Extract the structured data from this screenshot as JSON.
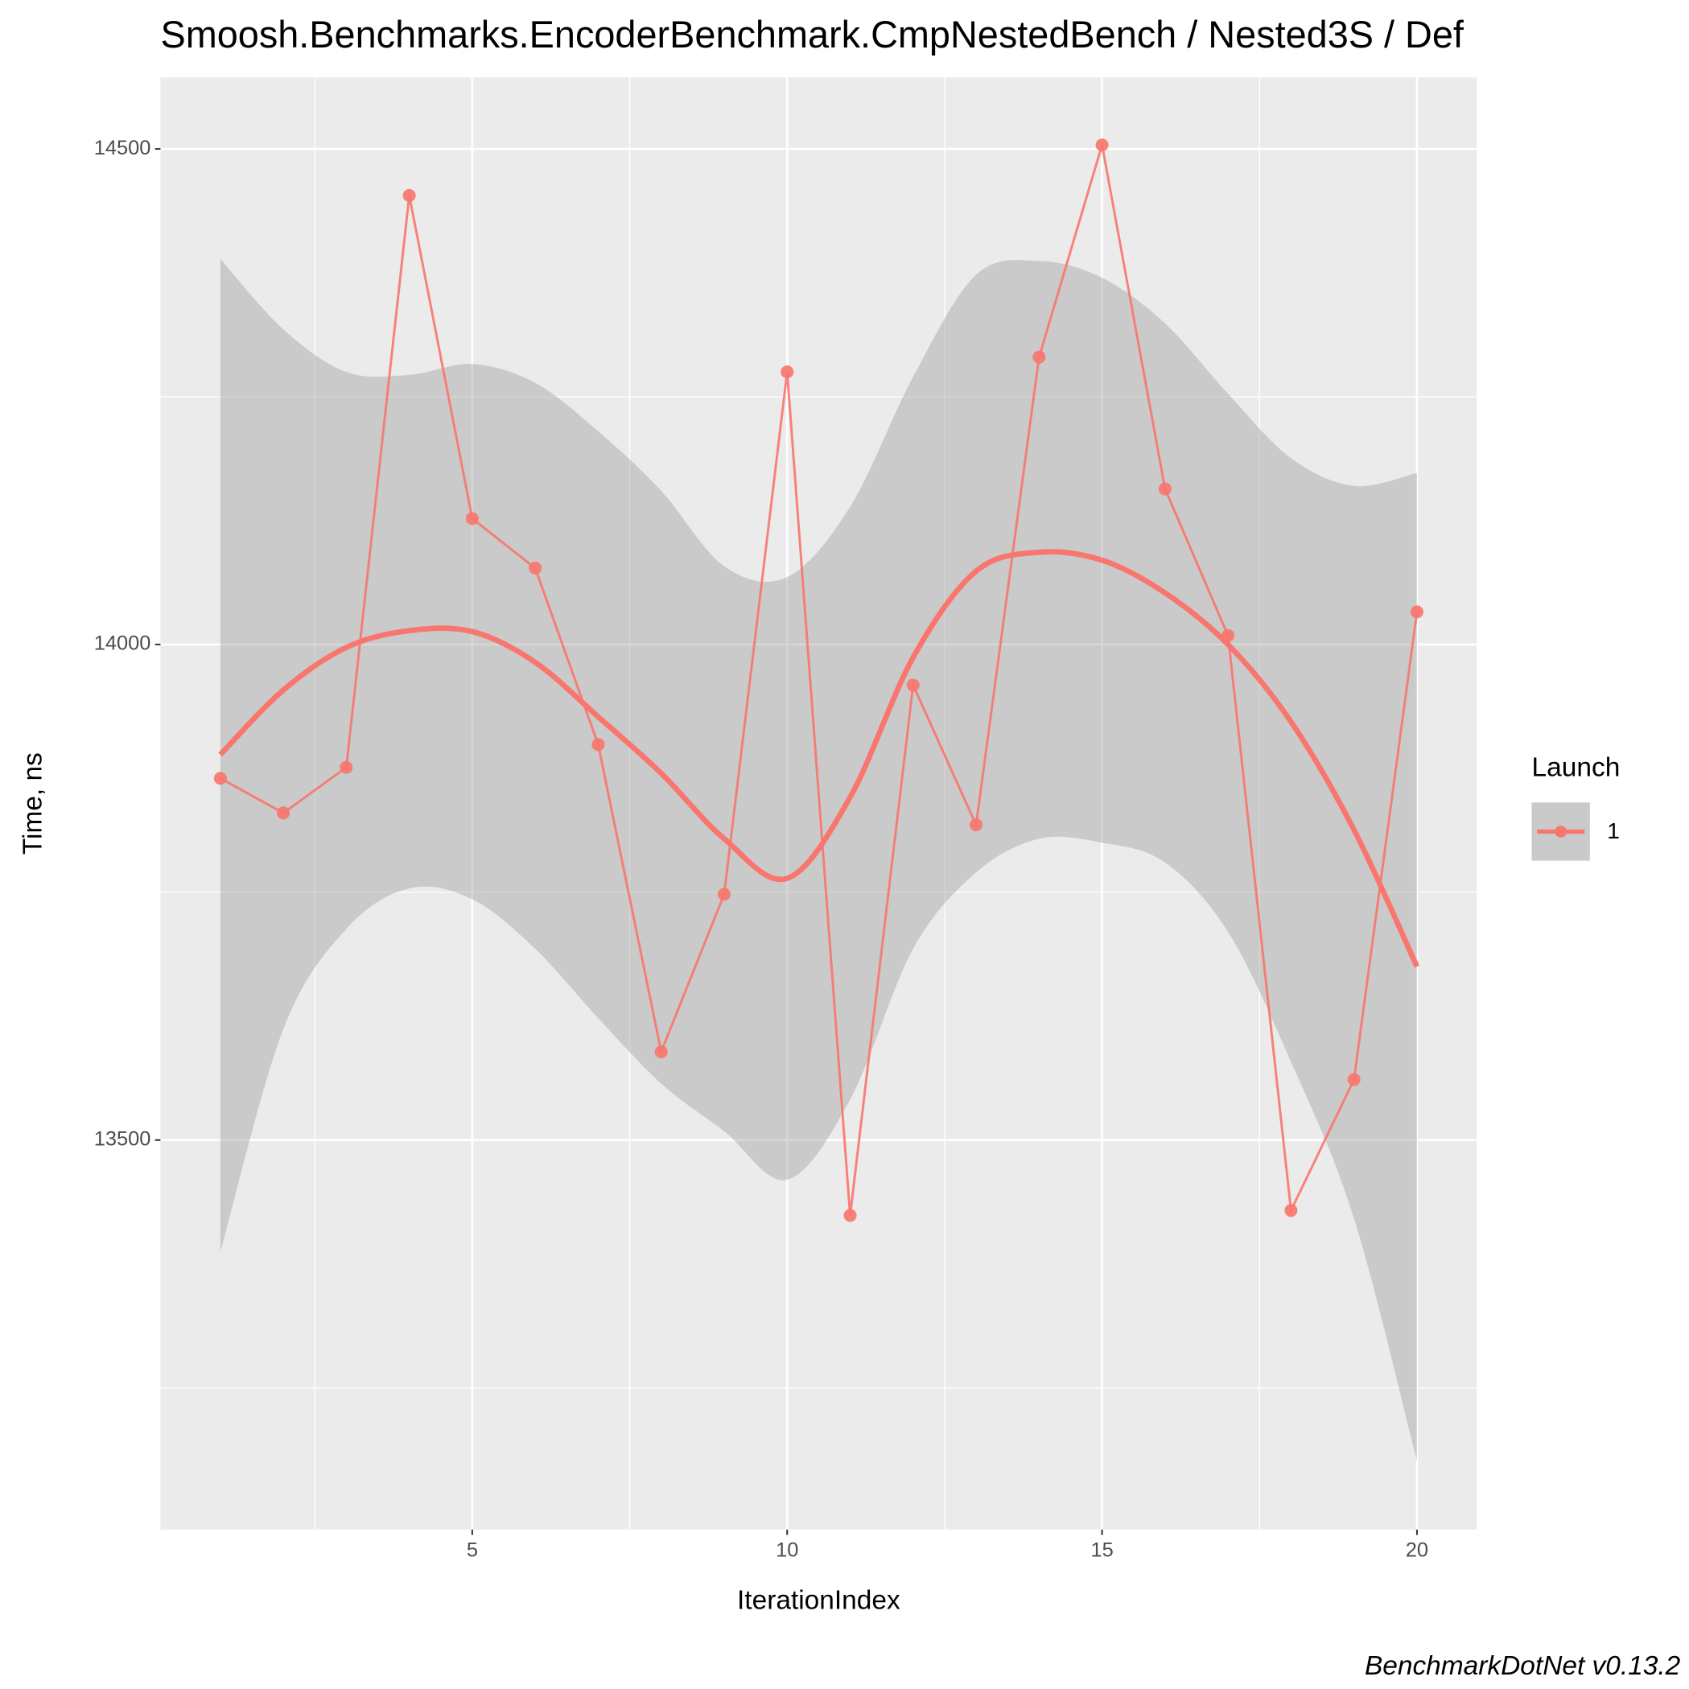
{
  "chart_data": {
    "type": "line",
    "title": "Smoosh.Benchmarks.EncoderBenchmark.CmpNestedBench / Nested3S / Def",
    "x_label": "IterationIndex",
    "y_label": "Time, ns",
    "caption": "BenchmarkDotNet v0.13.2",
    "legend_title": "Launch",
    "legend_position": "right",
    "grid": true,
    "xlim": [
      0.05,
      20.95
    ],
    "ylim": [
      13107,
      14572
    ],
    "xticks": [
      5,
      10,
      15,
      20
    ],
    "yticks": [
      13500,
      14000,
      14500
    ],
    "xminor": [
      2.5,
      7.5,
      12.5,
      17.5
    ],
    "yminor": [
      13250,
      13750,
      14250
    ],
    "x": [
      1,
      2,
      3,
      4,
      5,
      6,
      7,
      8,
      9,
      10,
      11,
      12,
      13,
      14,
      15,
      16,
      17,
      18,
      19,
      20
    ],
    "series": [
      {
        "name": "1",
        "color": "#F8766D",
        "values": [
          13865,
          13830,
          13876,
          14453,
          14127,
          14077,
          13899,
          13589,
          13748,
          14275,
          13424,
          13959,
          13818,
          14290,
          14504,
          14157,
          14009,
          13429,
          13561,
          14033
        ]
      }
    ],
    "smooth": {
      "color": "#F8766D",
      "band_color": "#999999",
      "values": [
        13889,
        13954,
        13997,
        14014,
        14013,
        13982,
        13927,
        13870,
        13804,
        13764,
        13846,
        13987,
        14074,
        14093,
        14085,
        14052,
        14000,
        13922,
        13813,
        13675
      ],
      "upper": [
        14389,
        14318,
        14275,
        14272,
        14283,
        14264,
        14215,
        14155,
        14079,
        14068,
        14139,
        14270,
        14373,
        14387,
        14370,
        14324,
        14253,
        14188,
        14160,
        14173
      ],
      "lower": [
        13387,
        13612,
        13713,
        13754,
        13743,
        13693,
        13623,
        13557,
        13509,
        13460,
        13541,
        13693,
        13770,
        13804,
        13800,
        13780,
        13710,
        13579,
        13421,
        13176
      ]
    }
  }
}
